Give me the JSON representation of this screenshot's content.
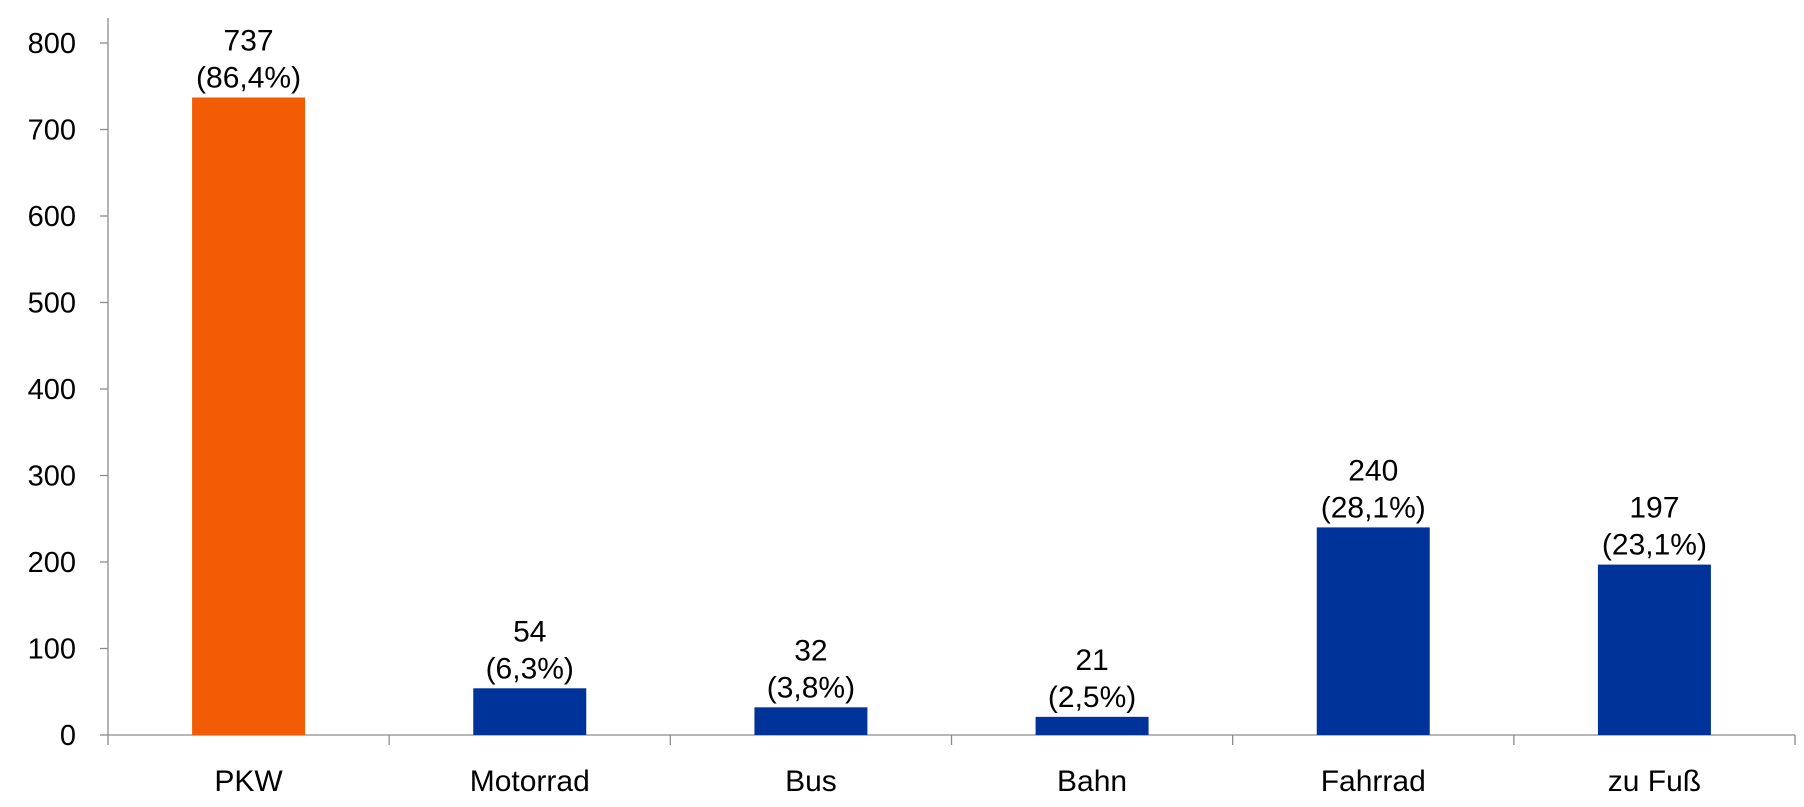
{
  "chart_data": {
    "type": "bar",
    "categories": [
      "PKW",
      "Motorrad",
      "Bus",
      "Bahn",
      "Fahrrad",
      "zu Fuß"
    ],
    "values": [
      737,
      54,
      32,
      21,
      240,
      197
    ],
    "value_labels": [
      "737",
      "54",
      "32",
      "21",
      "240",
      "197"
    ],
    "percent_labels": [
      "(86,4%)",
      "(6,3%)",
      "(3,8%)",
      "(2,5%)",
      "(28,1%)",
      "(23,1%)"
    ],
    "bar_colors": [
      "#F25C05",
      "#003399",
      "#003399",
      "#003399",
      "#003399",
      "#003399"
    ],
    "title": "",
    "xlabel": "",
    "ylabel": "",
    "ylim": [
      0,
      800
    ],
    "yticks": [
      0,
      100,
      200,
      300,
      400,
      500,
      600,
      700,
      800
    ],
    "grid": false,
    "legend": "none"
  }
}
